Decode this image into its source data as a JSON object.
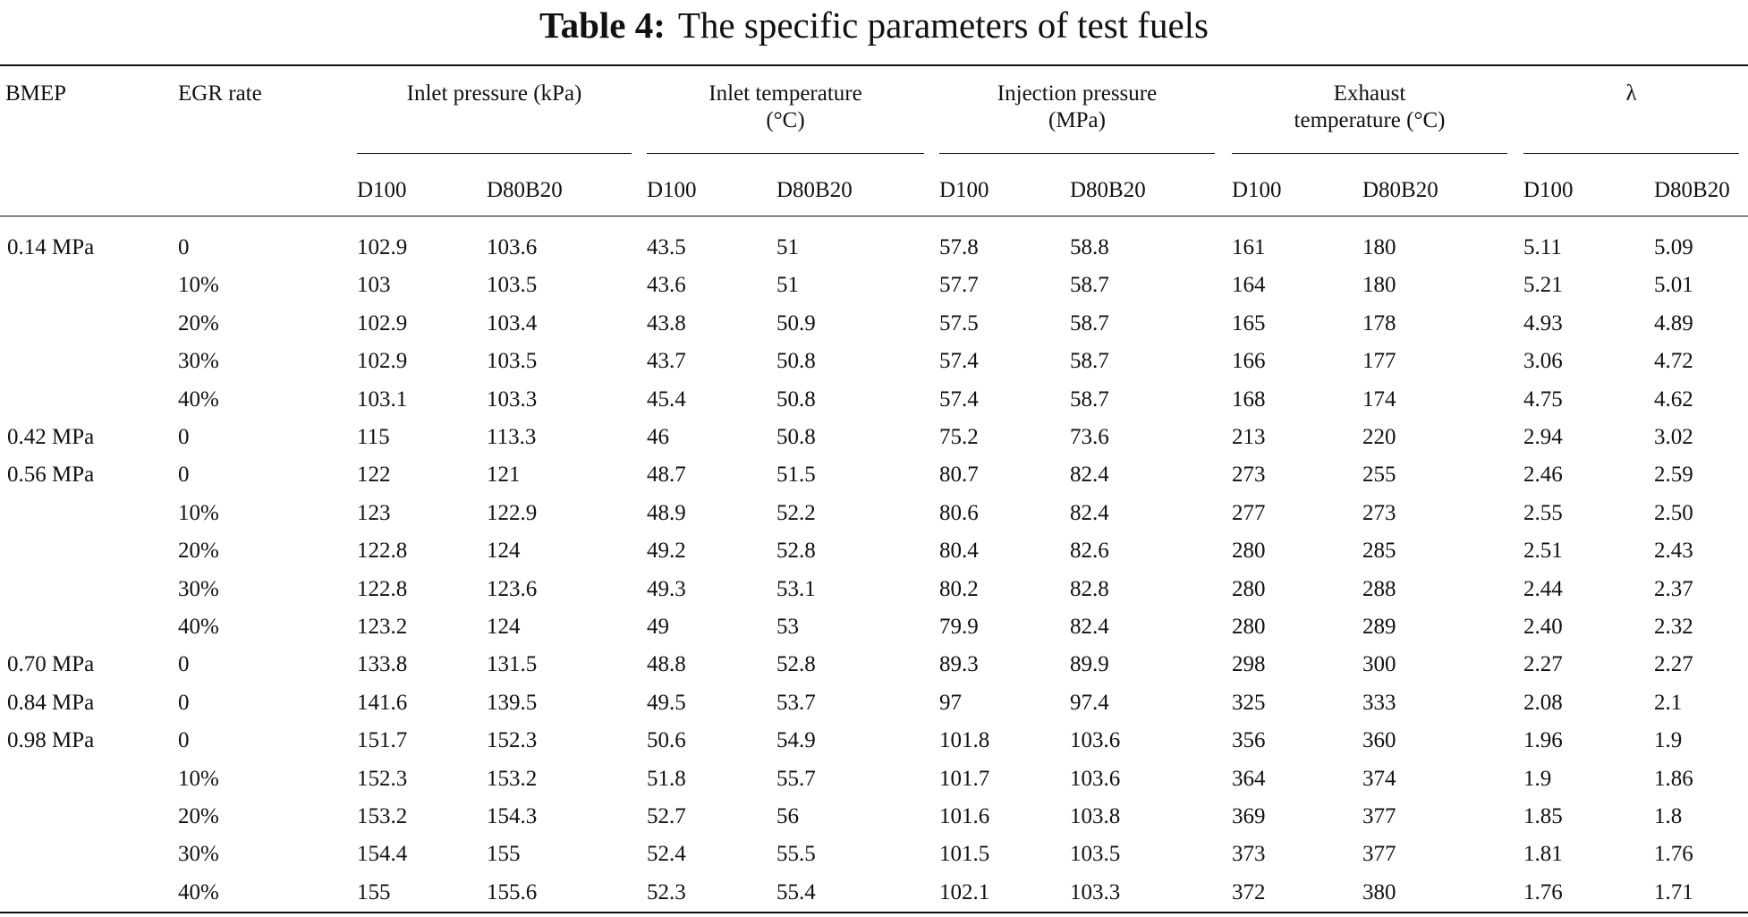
{
  "title": {
    "label": "Table 4:",
    "text": "The specific parameters of test fuels"
  },
  "header": {
    "bmep": "BMEP",
    "egr": "EGR rate",
    "groups": [
      {
        "lines": [
          "Inlet pressure (kPa)"
        ]
      },
      {
        "lines": [
          "Inlet temperature",
          "(°C)"
        ]
      },
      {
        "lines": [
          "Injection pressure",
          "(MPa)"
        ]
      },
      {
        "lines": [
          "Exhaust",
          "temperature (°C)"
        ]
      },
      {
        "lines": [
          "λ"
        ]
      }
    ],
    "fuels": [
      "D100",
      "D80B20"
    ]
  },
  "body": [
    {
      "bmep": "0.14 MPa",
      "rows": [
        [
          "0",
          "102.9",
          "103.6",
          "43.5",
          "51",
          "57.8",
          "58.8",
          "161",
          "180",
          "5.11",
          "5.09"
        ],
        [
          "10%",
          "103",
          "103.5",
          "43.6",
          "51",
          "57.7",
          "58.7",
          "164",
          "180",
          "5.21",
          "5.01"
        ],
        [
          "20%",
          "102.9",
          "103.4",
          "43.8",
          "50.9",
          "57.5",
          "58.7",
          "165",
          "178",
          "4.93",
          "4.89"
        ],
        [
          "30%",
          "102.9",
          "103.5",
          "43.7",
          "50.8",
          "57.4",
          "58.7",
          "166",
          "177",
          "3.06",
          "4.72"
        ],
        [
          "40%",
          "103.1",
          "103.3",
          "45.4",
          "50.8",
          "57.4",
          "58.7",
          "168",
          "174",
          "4.75",
          "4.62"
        ]
      ]
    },
    {
      "bmep": "0.42 MPa",
      "rows": [
        [
          "0",
          "115",
          "113.3",
          "46",
          "50.8",
          "75.2",
          "73.6",
          "213",
          "220",
          "2.94",
          "3.02"
        ]
      ]
    },
    {
      "bmep": "0.56 MPa",
      "rows": [
        [
          "0",
          "122",
          "121",
          "48.7",
          "51.5",
          "80.7",
          "82.4",
          "273",
          "255",
          "2.46",
          "2.59"
        ],
        [
          "10%",
          "123",
          "122.9",
          "48.9",
          "52.2",
          "80.6",
          "82.4",
          "277",
          "273",
          "2.55",
          "2.50"
        ],
        [
          "20%",
          "122.8",
          "124",
          "49.2",
          "52.8",
          "80.4",
          "82.6",
          "280",
          "285",
          "2.51",
          "2.43"
        ],
        [
          "30%",
          "122.8",
          "123.6",
          "49.3",
          "53.1",
          "80.2",
          "82.8",
          "280",
          "288",
          "2.44",
          "2.37"
        ],
        [
          "40%",
          "123.2",
          "124",
          "49",
          "53",
          "79.9",
          "82.4",
          "280",
          "289",
          "2.40",
          "2.32"
        ]
      ]
    },
    {
      "bmep": "0.70 MPa",
      "rows": [
        [
          "0",
          "133.8",
          "131.5",
          "48.8",
          "52.8",
          "89.3",
          "89.9",
          "298",
          "300",
          "2.27",
          "2.27"
        ]
      ]
    },
    {
      "bmep": "0.84 MPa",
      "rows": [
        [
          "0",
          "141.6",
          "139.5",
          "49.5",
          "53.7",
          "97",
          "97.4",
          "325",
          "333",
          "2.08",
          "2.1"
        ]
      ]
    },
    {
      "bmep": "0.98 MPa",
      "rows": [
        [
          "0",
          "151.7",
          "152.3",
          "50.6",
          "54.9",
          "101.8",
          "103.6",
          "356",
          "360",
          "1.96",
          "1.9"
        ],
        [
          "10%",
          "152.3",
          "153.2",
          "51.8",
          "55.7",
          "101.7",
          "103.6",
          "364",
          "374",
          "1.9",
          "1.86"
        ],
        [
          "20%",
          "153.2",
          "154.3",
          "52.7",
          "56",
          "101.6",
          "103.8",
          "369",
          "377",
          "1.85",
          "1.8"
        ],
        [
          "30%",
          "154.4",
          "155",
          "52.4",
          "55.5",
          "101.5",
          "103.5",
          "373",
          "377",
          "1.81",
          "1.76"
        ],
        [
          "40%",
          "155",
          "155.6",
          "52.3",
          "55.4",
          "102.1",
          "103.3",
          "372",
          "380",
          "1.76",
          "1.71"
        ]
      ]
    }
  ]
}
